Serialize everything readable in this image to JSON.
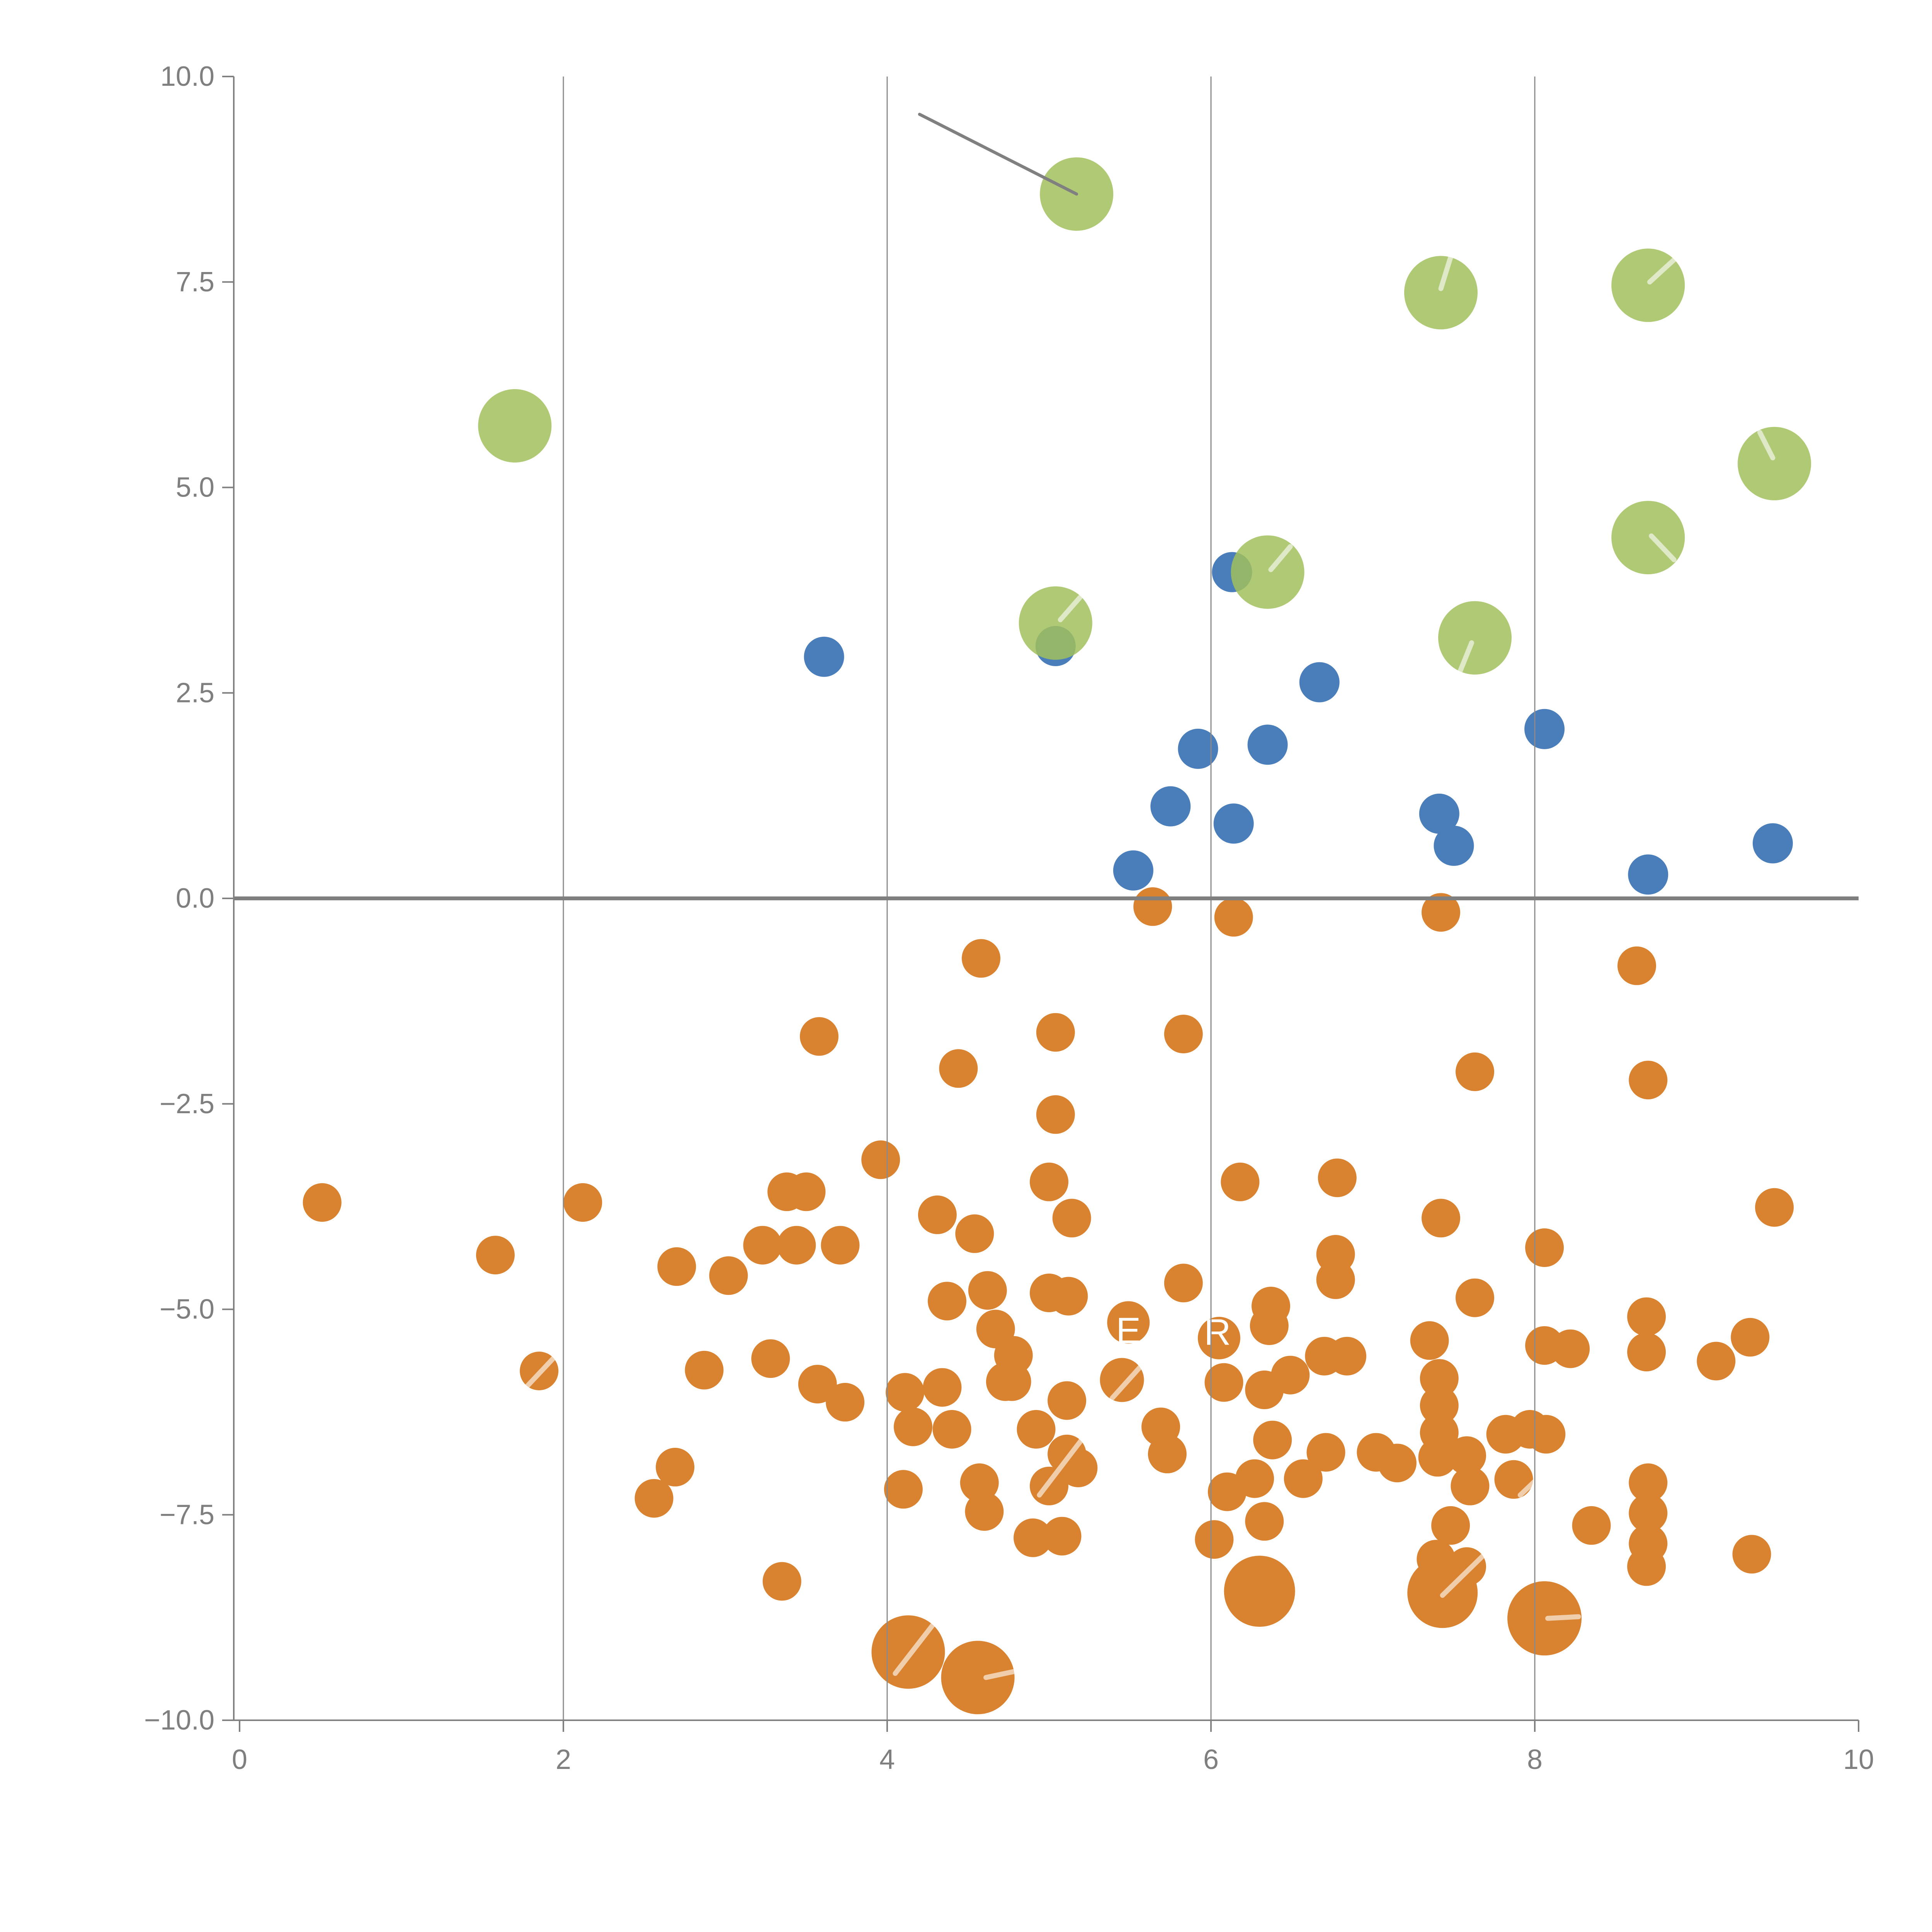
{
  "chart_data": {
    "type": "scatter",
    "title": "",
    "xlabel": "",
    "ylabel": "",
    "xlim": [
      0,
      10
    ],
    "ylim": [
      -10,
      10
    ],
    "grid": "vertical-only",
    "legend": "none",
    "x_ticks": [
      {
        "value": 0,
        "label": "0"
      },
      {
        "value": 2,
        "label": "2"
      },
      {
        "value": 4,
        "label": "4"
      },
      {
        "value": 6,
        "label": "6"
      },
      {
        "value": 8,
        "label": "8"
      },
      {
        "value": 10,
        "label": "10"
      }
    ],
    "y_ticks": [
      {
        "value": 10,
        "label": "10.0"
      },
      {
        "value": 7.5,
        "label": "7.5"
      },
      {
        "value": 5,
        "label": "5.0"
      },
      {
        "value": 2.5,
        "label": "2.5"
      },
      {
        "value": 0,
        "label": "0.0"
      },
      {
        "value": -2.5,
        "label": "−2.5"
      },
      {
        "value": -5,
        "label": "−5.0"
      },
      {
        "value": -7.5,
        "label": "−7.5"
      },
      {
        "value": -10,
        "label": "−10.0"
      }
    ],
    "gridlines_x": [
      2,
      4,
      6,
      8
    ],
    "zero_line": {
      "y": 0,
      "color": "#7f7f7f"
    },
    "colors": {
      "axis": "#808080",
      "tick_label": "#7f7f7f",
      "gridline": "#8a8a8a",
      "annotation": "#808080",
      "watermark": "#ffffff"
    },
    "annotation_line": {
      "x1": 4.2,
      "y1": 9.54,
      "x2": 5.17,
      "y2": 8.57
    },
    "watermark_letters": [
      {
        "char": "E",
        "x": 5.49,
        "y": -5.26
      },
      {
        "char": "R",
        "x": 6.04,
        "y": -5.28
      }
    ],
    "watermark_slashes": [
      {
        "x1": 1.75,
        "y1": -5.99,
        "x2": 1.96,
        "y2": -5.55
      },
      {
        "x1": 4.05,
        "y1": -9.43,
        "x2": 4.29,
        "y2": -8.82
      },
      {
        "x1": 4.61,
        "y1": -9.48,
        "x2": 4.8,
        "y2": -9.4
      },
      {
        "x1": 4.94,
        "y1": -7.26,
        "x2": 5.27,
        "y2": -6.41
      },
      {
        "x1": 5.39,
        "y1": -6.08,
        "x2": 5.6,
        "y2": -5.62
      },
      {
        "x1": 6.37,
        "y1": 4.0,
        "x2": 6.49,
        "y2": 4.28
      },
      {
        "x1": 7.54,
        "y1": 2.77,
        "x2": 7.61,
        "y2": 3.11
      },
      {
        "x1": 7.42,
        "y1": 7.42,
        "x2": 7.48,
        "y2": 7.8
      },
      {
        "x1": 8.71,
        "y1": 7.5,
        "x2": 8.86,
        "y2": 7.77
      },
      {
        "x1": 9.39,
        "y1": 5.67,
        "x2": 9.47,
        "y2": 5.36
      },
      {
        "x1": 8.72,
        "y1": 4.41,
        "x2": 8.86,
        "y2": 4.12
      },
      {
        "x1": 7.91,
        "y1": -7.26,
        "x2": 8.06,
        "y2": -6.98
      },
      {
        "x1": 7.43,
        "y1": -8.48,
        "x2": 7.69,
        "y2": -7.98
      },
      {
        "x1": 8.08,
        "y1": -8.76,
        "x2": 8.27,
        "y2": -8.74
      },
      {
        "x1": 5.07,
        "y1": 3.39,
        "x2": 5.19,
        "y2": 3.66
      }
    ],
    "series": [
      {
        "name": "blue",
        "color": "#4a7ebb",
        "opacity": 1.0,
        "default_radius_px": 52,
        "points": [
          [
            3.61,
            2.94
          ],
          [
            5.04,
            3.07
          ],
          [
            6.13,
            3.97
          ],
          [
            6.67,
            2.63
          ],
          [
            5.92,
            1.82
          ],
          [
            6.35,
            1.87
          ],
          [
            5.75,
            1.12
          ],
          [
            6.14,
            0.91
          ],
          [
            5.52,
            0.34
          ],
          [
            7.41,
            1.03
          ],
          [
            7.5,
            0.64
          ],
          [
            8.06,
            2.06
          ],
          [
            8.7,
            0.29
          ],
          [
            9.47,
            0.67
          ]
        ]
      },
      {
        "name": "orange",
        "color": "#d9822f",
        "opacity": 1.0,
        "default_radius_px": 50,
        "points": [
          [
            0.51,
            -3.7
          ],
          [
            1.58,
            -4.34
          ],
          [
            2.12,
            -3.7
          ],
          [
            1.85,
            -5.75
          ],
          [
            2.7,
            -4.48
          ],
          [
            3.02,
            -4.59
          ],
          [
            3.23,
            -4.22
          ],
          [
            3.44,
            -4.22
          ],
          [
            3.71,
            -4.22
          ],
          [
            3.38,
            -3.57
          ],
          [
            3.5,
            -3.57
          ],
          [
            3.58,
            -1.68
          ],
          [
            2.87,
            -5.74
          ],
          [
            3.28,
            -5.6
          ],
          [
            2.69,
            -6.92
          ],
          [
            2.56,
            -7.3
          ],
          [
            3.35,
            -8.31
          ],
          [
            4.58,
            -0.73
          ],
          [
            5.64,
            -0.1
          ],
          [
            6.14,
            -0.23
          ],
          [
            5.04,
            -1.63
          ],
          [
            5.83,
            -1.65
          ],
          [
            4.44,
            -2.07
          ],
          [
            5.04,
            -2.63
          ],
          [
            3.96,
            -3.18
          ],
          [
            5.0,
            -3.45
          ],
          [
            5.14,
            -3.89
          ],
          [
            4.31,
            -3.85
          ],
          [
            4.54,
            -4.08
          ],
          [
            6.18,
            -3.45
          ],
          [
            6.78,
            -3.4
          ],
          [
            5.83,
            -4.68
          ],
          [
            4.37,
            -4.9
          ],
          [
            4.62,
            -4.77
          ],
          [
            4.67,
            -5.24
          ],
          [
            4.78,
            -5.56
          ],
          [
            4.77,
            -5.88
          ],
          [
            5.0,
            -4.8
          ],
          [
            5.12,
            -4.84
          ],
          [
            5.49,
            -5.16,
            55
          ],
          [
            6.05,
            -5.35,
            55
          ],
          [
            5.45,
            -5.86,
            57
          ],
          [
            6.37,
            -4.96
          ],
          [
            6.36,
            -5.2
          ],
          [
            6.77,
            -4.33
          ],
          [
            6.77,
            -4.64
          ],
          [
            7.42,
            -0.17
          ],
          [
            8.63,
            -0.82
          ],
          [
            7.63,
            -2.11
          ],
          [
            8.7,
            -2.21
          ],
          [
            7.42,
            -3.89
          ],
          [
            9.48,
            -3.76
          ],
          [
            8.06,
            -4.25
          ],
          [
            7.63,
            -4.86
          ],
          [
            7.35,
            -5.38
          ],
          [
            8.06,
            -5.44
          ],
          [
            8.22,
            -5.48
          ],
          [
            8.69,
            -5.09
          ],
          [
            8.69,
            -5.52
          ],
          [
            9.12,
            -5.63
          ],
          [
            9.33,
            -5.34
          ],
          [
            3.57,
            -5.91
          ],
          [
            3.74,
            -6.13
          ],
          [
            4.11,
            -6.01
          ],
          [
            4.34,
            -5.95
          ],
          [
            4.73,
            -5.88
          ],
          [
            5.11,
            -6.11
          ],
          [
            4.16,
            -6.43
          ],
          [
            4.4,
            -6.46
          ],
          [
            4.92,
            -6.46
          ],
          [
            5.11,
            -6.76
          ],
          [
            5.69,
            -6.43
          ],
          [
            5.73,
            -6.76
          ],
          [
            6.38,
            -6.59
          ],
          [
            6.71,
            -6.74
          ],
          [
            6.08,
            -5.89
          ],
          [
            6.33,
            -5.98
          ],
          [
            6.49,
            -5.8
          ],
          [
            6.7,
            -5.57
          ],
          [
            6.84,
            -5.57
          ],
          [
            4.1,
            -7.19
          ],
          [
            4.57,
            -7.11
          ],
          [
            4.6,
            -7.46
          ],
          [
            5.0,
            -7.15
          ],
          [
            5.18,
            -6.93
          ],
          [
            6.1,
            -7.22
          ],
          [
            6.27,
            -7.06
          ],
          [
            6.33,
            -7.58
          ],
          [
            6.02,
            -7.8
          ],
          [
            6.57,
            -7.06
          ],
          [
            4.9,
            -7.78
          ],
          [
            5.08,
            -7.76
          ],
          [
            6.3,
            -8.43,
            92
          ],
          [
            4.13,
            -9.17,
            95
          ],
          [
            4.56,
            -9.48,
            95
          ],
          [
            7.02,
            -6.74
          ],
          [
            7.15,
            -6.87
          ],
          [
            7.4,
            -6.8
          ],
          [
            7.41,
            -5.84
          ],
          [
            7.41,
            -6.17
          ],
          [
            7.41,
            -6.5
          ],
          [
            7.58,
            -6.78
          ],
          [
            7.6,
            -7.15
          ],
          [
            7.82,
            -6.52
          ],
          [
            7.87,
            -7.07
          ],
          [
            7.97,
            -6.46
          ],
          [
            8.07,
            -6.52
          ],
          [
            7.48,
            -7.63
          ],
          [
            7.39,
            -8.04
          ],
          [
            7.58,
            -8.13
          ],
          [
            7.43,
            -8.45,
            91
          ],
          [
            8.06,
            -8.76,
            96
          ],
          [
            8.35,
            -7.63
          ],
          [
            8.7,
            -7.11
          ],
          [
            8.7,
            -7.48
          ],
          [
            8.7,
            -7.85
          ],
          [
            8.69,
            -8.13
          ],
          [
            9.34,
            -7.98
          ]
        ]
      },
      {
        "name": "green",
        "color": "#a1bf5c",
        "opacity": 0.85,
        "default_radius_px": 95,
        "points": [
          [
            1.7,
            5.75
          ],
          [
            5.17,
            8.57
          ],
          [
            5.04,
            3.35
          ],
          [
            6.35,
            3.97
          ],
          [
            7.42,
            7.37
          ],
          [
            7.63,
            3.17
          ],
          [
            8.7,
            7.46
          ],
          [
            8.7,
            4.39
          ],
          [
            9.48,
            5.29
          ]
        ]
      }
    ]
  }
}
